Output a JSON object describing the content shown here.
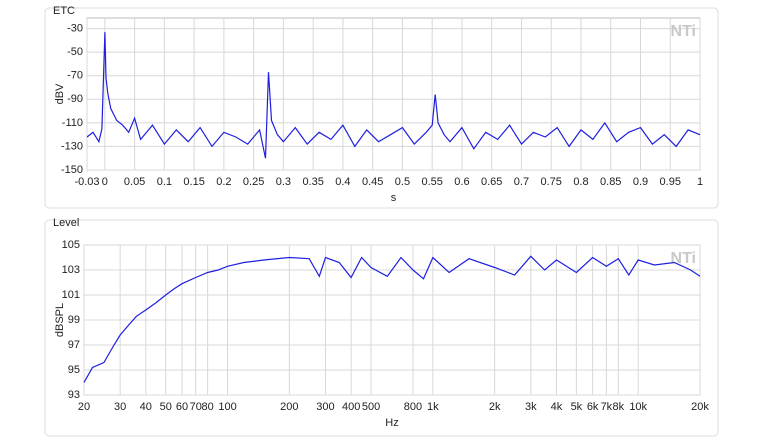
{
  "chart_data": [
    {
      "type": "line",
      "title": "ETC",
      "ylabel": "dBV",
      "xlabel": "s",
      "watermark": "NTi",
      "color": "#1f1fe0",
      "grid": true,
      "log_x": false,
      "xlim": [
        -0.03,
        1
      ],
      "ylim": [
        -150,
        -21
      ],
      "xticks": [
        -0.03,
        0,
        0.05,
        0.1,
        0.15,
        0.2,
        0.25,
        0.3,
        0.35,
        0.4,
        0.45,
        0.5,
        0.55,
        0.6,
        0.65,
        0.7,
        0.75,
        0.8,
        0.85,
        0.9,
        0.95,
        1
      ],
      "yticks": [
        -150,
        -130,
        -110,
        -90,
        -70,
        -50,
        -30
      ],
      "x": [
        -0.03,
        -0.02,
        -0.01,
        -0.005,
        0,
        0.002,
        0.005,
        0.01,
        0.02,
        0.03,
        0.04,
        0.05,
        0.06,
        0.08,
        0.1,
        0.12,
        0.14,
        0.16,
        0.18,
        0.2,
        0.22,
        0.24,
        0.26,
        0.27,
        0.275,
        0.28,
        0.29,
        0.3,
        0.32,
        0.34,
        0.36,
        0.38,
        0.4,
        0.42,
        0.44,
        0.46,
        0.48,
        0.5,
        0.52,
        0.54,
        0.55,
        0.555,
        0.56,
        0.57,
        0.58,
        0.6,
        0.62,
        0.64,
        0.66,
        0.68,
        0.7,
        0.72,
        0.74,
        0.76,
        0.78,
        0.8,
        0.82,
        0.84,
        0.86,
        0.88,
        0.9,
        0.92,
        0.94,
        0.96,
        0.98,
        1
      ],
      "values": [
        -122,
        -118,
        -126,
        -115,
        -33,
        -72,
        -85,
        -98,
        -108,
        -112,
        -118,
        -106,
        -124,
        -112,
        -128,
        -116,
        -126,
        -114,
        -130,
        -118,
        -122,
        -128,
        -116,
        -140,
        -67,
        -108,
        -120,
        -126,
        -114,
        -128,
        -118,
        -124,
        -112,
        -130,
        -116,
        -126,
        -120,
        -114,
        -128,
        -118,
        -112,
        -86,
        -110,
        -120,
        -126,
        -114,
        -132,
        -118,
        -124,
        -112,
        -128,
        -118,
        -122,
        -114,
        -130,
        -116,
        -124,
        -110,
        -126,
        -118,
        -114,
        -128,
        -120,
        -130,
        -116,
        -120
      ]
    },
    {
      "type": "line",
      "title": "Level",
      "ylabel": "dBSPL",
      "xlabel": "Hz",
      "watermark": "NTi",
      "color": "#1f1fe0",
      "grid": true,
      "log_x": true,
      "xlim": [
        20,
        20000
      ],
      "ylim": [
        93,
        105
      ],
      "xticks": [
        20,
        30,
        40,
        50,
        60,
        70,
        80,
        100,
        200,
        300,
        400,
        500,
        800,
        {
          "value": 1000,
          "label": "1k"
        },
        {
          "value": 2000,
          "label": "2k"
        },
        {
          "value": 3000,
          "label": "3k"
        },
        {
          "value": 4000,
          "label": "4k"
        },
        {
          "value": 5000,
          "label": "5k"
        },
        {
          "value": 6000,
          "label": "6k"
        },
        {
          "value": 7000,
          "label": "7k"
        },
        {
          "value": 8000,
          "label": "8k"
        },
        {
          "value": 10000,
          "label": "10k"
        },
        {
          "value": 20000,
          "label": "20k"
        }
      ],
      "yticks": [
        93,
        95,
        97,
        99,
        101,
        103,
        105
      ],
      "x": [
        20,
        22,
        25,
        28,
        30,
        33,
        36,
        40,
        45,
        50,
        55,
        60,
        70,
        80,
        90,
        100,
        120,
        150,
        200,
        250,
        280,
        300,
        350,
        400,
        450,
        500,
        600,
        700,
        800,
        900,
        1000,
        1200,
        1500,
        2000,
        2500,
        3000,
        3500,
        4000,
        5000,
        6000,
        7000,
        8000,
        9000,
        10000,
        12000,
        15000,
        18000,
        20000
      ],
      "values": [
        94,
        95.2,
        95.6,
        97,
        97.8,
        98.6,
        99.3,
        99.8,
        100.4,
        101,
        101.5,
        101.9,
        102.4,
        102.8,
        103,
        103.3,
        103.6,
        103.8,
        104,
        103.9,
        102.5,
        104,
        103.6,
        102.4,
        104,
        103.2,
        102.5,
        104,
        103,
        102.3,
        104,
        102.8,
        103.9,
        103.2,
        102.6,
        104.1,
        103,
        103.8,
        102.8,
        104,
        103.3,
        103.9,
        102.6,
        103.8,
        103.4,
        103.6,
        103,
        102.5
      ]
    }
  ]
}
